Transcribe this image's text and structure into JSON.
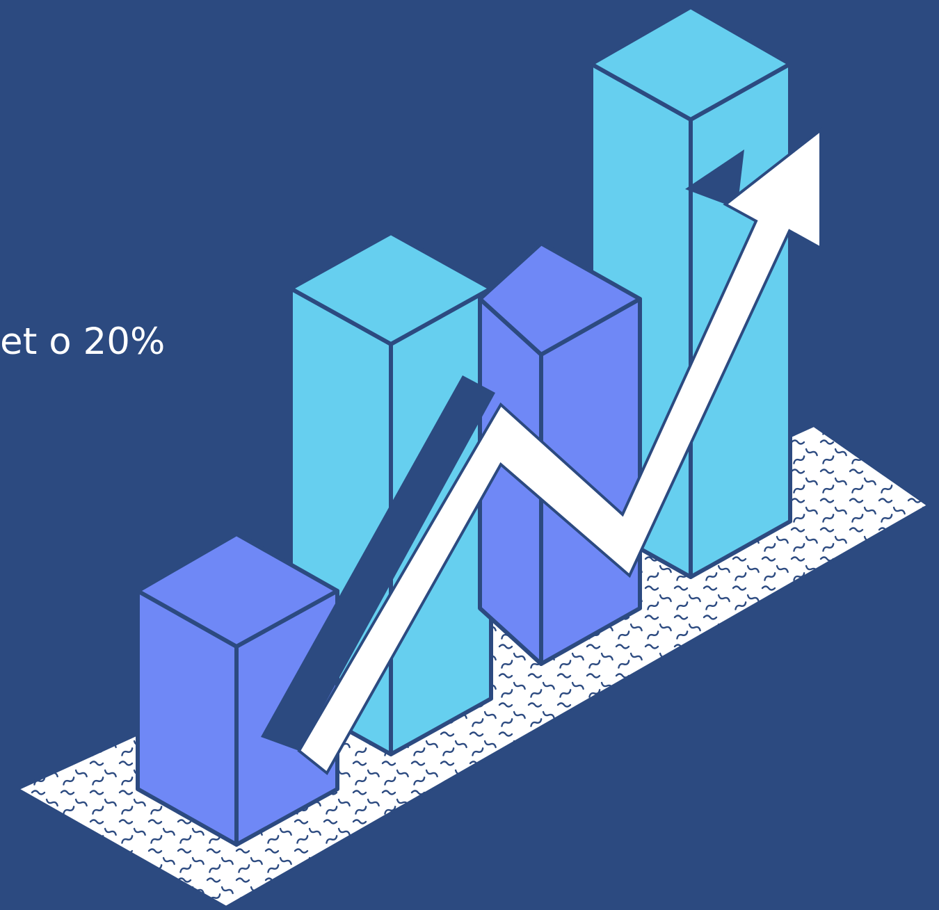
{
  "headline": {
    "text": "et o 20%"
  },
  "illustration": {
    "colors": {
      "background": "#2c4a80",
      "outline": "#2c4a80",
      "bar_light": "#66cfef",
      "bar_purple": "#6f88f6",
      "arrow": "#ffffff",
      "floor": "#ffffff",
      "squiggle": "#2c4a80"
    },
    "bars": [
      {
        "color": "bar_purple",
        "relative_height": 0.56
      },
      {
        "color": "bar_light",
        "relative_height": 0.94
      },
      {
        "color": "bar_purple",
        "relative_height": 0.76
      },
      {
        "color": "bar_light",
        "relative_height": 1.0
      }
    ],
    "trend": "up"
  }
}
